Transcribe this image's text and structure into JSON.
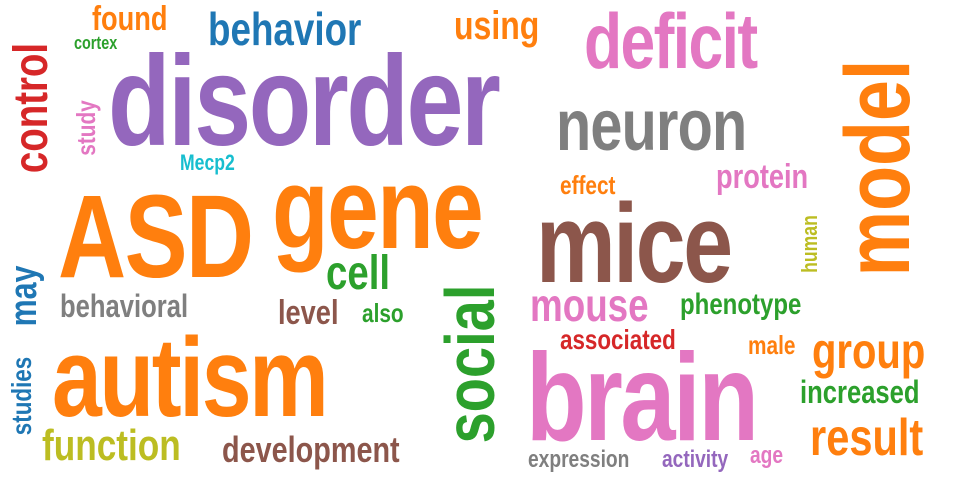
{
  "words": [
    {
      "text": "disorder",
      "color": "#9467bd"
    },
    {
      "text": "gene",
      "color": "#ff7f0e"
    },
    {
      "text": "ASD",
      "color": "#ff7f0e"
    },
    {
      "text": "autism",
      "color": "#ff7f0e"
    },
    {
      "text": "mice",
      "color": "#8c564b"
    },
    {
      "text": "brain",
      "color": "#e377c2"
    },
    {
      "text": "model",
      "color": "#ff7f0e"
    },
    {
      "text": "social",
      "color": "#2ca02c"
    },
    {
      "text": "neuron",
      "color": "#7f7f7f"
    },
    {
      "text": "deficit",
      "color": "#e377c2"
    },
    {
      "text": "behavior",
      "color": "#1f77b4"
    },
    {
      "text": "control",
      "color": "#d62728"
    },
    {
      "text": "found",
      "color": "#ff7f0e"
    },
    {
      "text": "using",
      "color": "#ff7f0e"
    },
    {
      "text": "cortex",
      "color": "#2ca02c"
    },
    {
      "text": "study",
      "color": "#e377c2"
    },
    {
      "text": "Mecp2",
      "color": "#17becf"
    },
    {
      "text": "protein",
      "color": "#e377c2"
    },
    {
      "text": "effect",
      "color": "#ff7f0e"
    },
    {
      "text": "human",
      "color": "#bcbd22"
    },
    {
      "text": "cell",
      "color": "#2ca02c"
    },
    {
      "text": "level",
      "color": "#8c564b"
    },
    {
      "text": "also",
      "color": "#2ca02c"
    },
    {
      "text": "may",
      "color": "#1f77b4"
    },
    {
      "text": "behavioral",
      "color": "#7f7f7f"
    },
    {
      "text": "studies",
      "color": "#1f77b4"
    },
    {
      "text": "mouse",
      "color": "#e377c2"
    },
    {
      "text": "phenotype",
      "color": "#2ca02c"
    },
    {
      "text": "associated",
      "color": "#d62728"
    },
    {
      "text": "male",
      "color": "#ff7f0e"
    },
    {
      "text": "group",
      "color": "#ff7f0e"
    },
    {
      "text": "increased",
      "color": "#2ca02c"
    },
    {
      "text": "result",
      "color": "#ff7f0e"
    },
    {
      "text": "function",
      "color": "#bcbd22"
    },
    {
      "text": "development",
      "color": "#8c564b"
    },
    {
      "text": "expression",
      "color": "#7f7f7f"
    },
    {
      "text": "activity",
      "color": "#9467bd"
    },
    {
      "text": "age",
      "color": "#e377c2"
    }
  ]
}
